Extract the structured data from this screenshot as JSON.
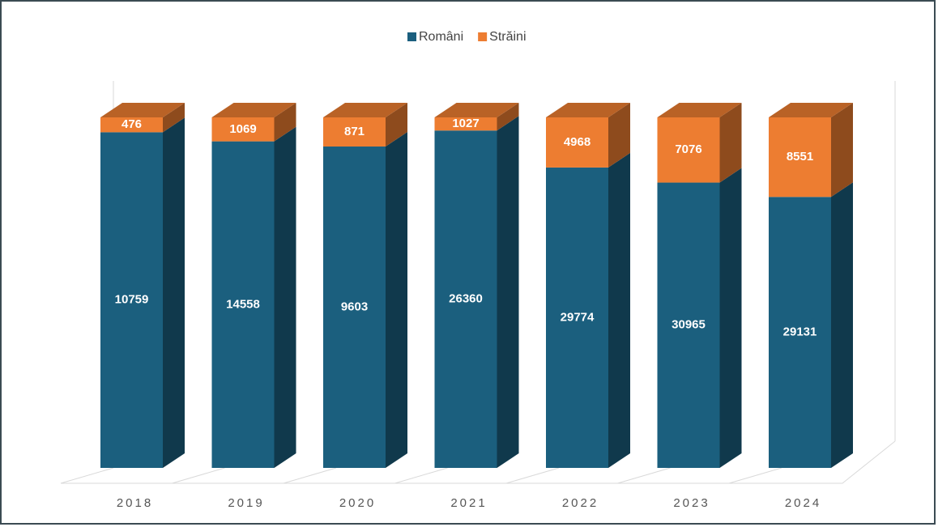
{
  "chart_data": {
    "type": "bar",
    "stacking": "percent",
    "categories": [
      "2018",
      "2019",
      "2020",
      "2021",
      "2022",
      "2023",
      "2024"
    ],
    "series": [
      {
        "name": "Români",
        "color": "#1b5f7e",
        "values": [
          10759,
          14558,
          9603,
          26360,
          29774,
          30965,
          29131
        ]
      },
      {
        "name": "Străini",
        "color": "#ed7d31",
        "values": [
          476,
          1069,
          871,
          1027,
          4968,
          7076,
          8551
        ]
      }
    ],
    "legend": "top"
  }
}
